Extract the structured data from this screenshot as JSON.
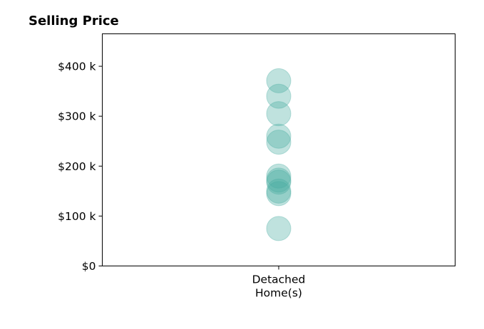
{
  "chart_data": {
    "type": "scatter",
    "title": "Selling Price",
    "xlabel": "",
    "ylabel": "",
    "categories": [
      "Detached\nHome(s)"
    ],
    "y_ticks": [
      {
        "value": 0,
        "label": "$0"
      },
      {
        "value": 100000,
        "label": "$100 k"
      },
      {
        "value": 200000,
        "label": "$200 k"
      },
      {
        "value": 300000,
        "label": "$300 k"
      },
      {
        "value": 400000,
        "label": "$400 k"
      }
    ],
    "ylim": [
      0,
      465000
    ],
    "grid": false,
    "marker_color": "#48aca0",
    "marker_opacity": 0.35,
    "series": [
      {
        "category": "Detached\nHome(s)",
        "values": [
          371000,
          340000,
          305000,
          260000,
          248000,
          180000,
          172000,
          168000,
          150000,
          145000,
          75000
        ]
      }
    ]
  }
}
